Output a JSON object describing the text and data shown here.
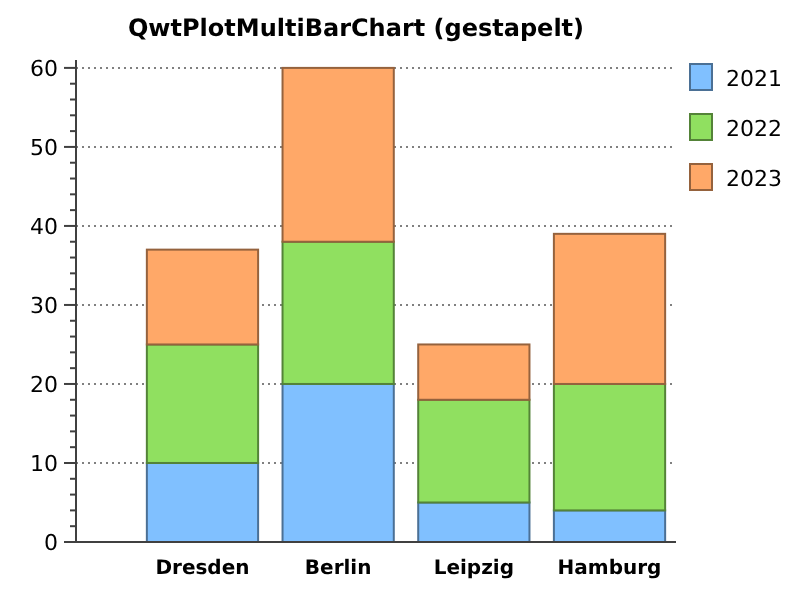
{
  "chart_data": {
    "type": "bar",
    "title": "QwtPlotMultiBarChart (gestapelt)",
    "stacked": true,
    "categories": [
      "Dresden",
      "Berlin",
      "Leipzig",
      "Hamburg"
    ],
    "series": [
      {
        "name": "2021",
        "color": "#80c0ff",
        "values": [
          10,
          20,
          5,
          4
        ]
      },
      {
        "name": "2022",
        "color": "#90e060",
        "values": [
          15,
          18,
          13,
          16
        ]
      },
      {
        "name": "2023",
        "color": "#ffa868",
        "values": [
          12,
          22,
          7,
          19
        ]
      }
    ],
    "ylim": [
      0,
      61
    ],
    "yticks": [
      0,
      10,
      20,
      30,
      40,
      50,
      60
    ],
    "grid": "y",
    "legend": "top right"
  }
}
